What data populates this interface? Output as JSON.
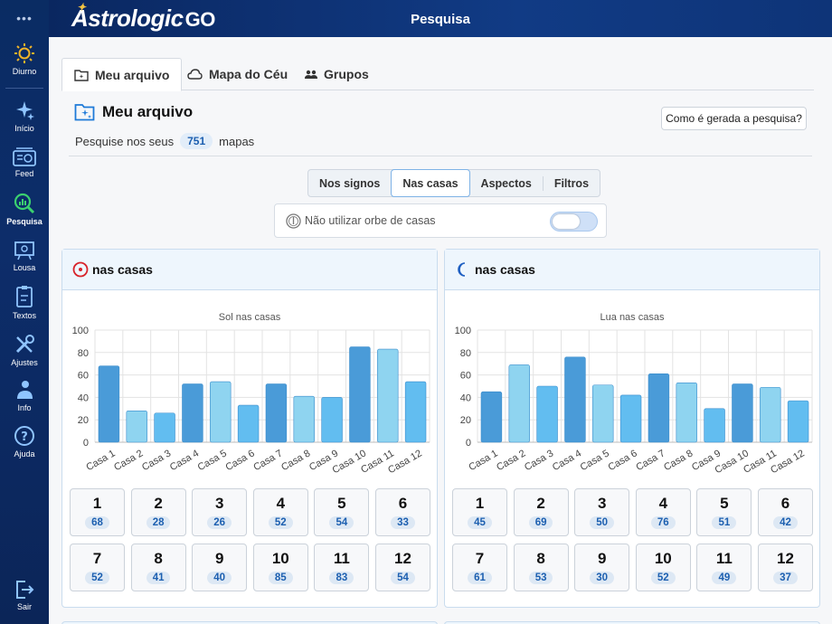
{
  "app": {
    "logo_text": "Astrologic",
    "logo_suffix": "GO",
    "page_title": "Pesquisa"
  },
  "sidebar": {
    "menu_glyph": "•••",
    "items": [
      {
        "label": "Diurno",
        "icon": "sun-icon"
      },
      {
        "label": "Início",
        "icon": "sparkles-icon"
      },
      {
        "label": "Feed",
        "icon": "feed-icon"
      },
      {
        "label": "Pesquisa",
        "icon": "search-chart-icon",
        "active": true
      },
      {
        "label": "Lousa",
        "icon": "board-icon"
      },
      {
        "label": "Textos",
        "icon": "texts-icon"
      },
      {
        "label": "Ajustes",
        "icon": "tools-icon"
      },
      {
        "label": "Info",
        "icon": "info-user-icon"
      },
      {
        "label": "Ajuda",
        "icon": "help-icon"
      },
      {
        "label": "Sair",
        "icon": "logout-icon"
      }
    ]
  },
  "tabs": [
    {
      "label": "Meu arquivo",
      "icon": "folder-star-icon",
      "active": true
    },
    {
      "label": "Mapa do Céu",
      "icon": "cloud-icon"
    },
    {
      "label": "Grupos",
      "icon": "group-icon"
    }
  ],
  "section": {
    "title": "Meu arquivo",
    "how_button": "Como é gerada a pesquisa?",
    "count_prefix": "Pesquise nos seus",
    "count": "751",
    "count_suffix": "mapas"
  },
  "filters": {
    "segments": [
      "Nos signos",
      "Nas casas",
      "Aspectos",
      "Filtros"
    ],
    "active": "Nas casas",
    "orb_label": "Não utilizar orbe de casas",
    "orb_enabled": false
  },
  "colors": {
    "accent": "#1c5fb0",
    "sun": "#d8232a",
    "moon": "#1e5fc2",
    "bar_dark": "#4a9bd8",
    "bar_mid": "#62bdf0",
    "bar_light": "#8fd4f0"
  },
  "panels": [
    {
      "planet_icon": "sun-icon",
      "header": "nas casas",
      "chart_data": {
        "type": "bar",
        "title": "Sol nas casas",
        "categories": [
          "Casa 1",
          "Casa 2",
          "Casa 3",
          "Casa 4",
          "Casa 5",
          "Casa 6",
          "Casa 7",
          "Casa 8",
          "Casa 9",
          "Casa 10",
          "Casa 11",
          "Casa 12"
        ],
        "values": [
          68,
          28,
          26,
          52,
          54,
          33,
          52,
          41,
          40,
          85,
          83,
          54
        ],
        "ylim": [
          0,
          100
        ],
        "yticks": [
          "0",
          "20",
          "40",
          "60",
          "80",
          "100"
        ],
        "grid": true
      },
      "cells": [
        {
          "n": "1",
          "v": "68"
        },
        {
          "n": "2",
          "v": "28"
        },
        {
          "n": "3",
          "v": "26"
        },
        {
          "n": "4",
          "v": "52"
        },
        {
          "n": "5",
          "v": "54"
        },
        {
          "n": "6",
          "v": "33"
        },
        {
          "n": "7",
          "v": "52"
        },
        {
          "n": "8",
          "v": "41"
        },
        {
          "n": "9",
          "v": "40"
        },
        {
          "n": "10",
          "v": "85"
        },
        {
          "n": "11",
          "v": "83"
        },
        {
          "n": "12",
          "v": "54"
        }
      ]
    },
    {
      "planet_icon": "moon-icon",
      "header": "nas casas",
      "chart_data": {
        "type": "bar",
        "title": "Lua nas casas",
        "categories": [
          "Casa 1",
          "Casa 2",
          "Casa 3",
          "Casa 4",
          "Casa 5",
          "Casa 6",
          "Casa 7",
          "Casa 8",
          "Casa 9",
          "Casa 10",
          "Casa 11",
          "Casa 12"
        ],
        "values": [
          45,
          69,
          50,
          76,
          51,
          42,
          61,
          53,
          30,
          52,
          49,
          37
        ],
        "ylim": [
          0,
          100
        ],
        "yticks": [
          "0",
          "20",
          "40",
          "60",
          "80",
          "100"
        ],
        "grid": true
      },
      "cells": [
        {
          "n": "1",
          "v": "45"
        },
        {
          "n": "2",
          "v": "69"
        },
        {
          "n": "3",
          "v": "50"
        },
        {
          "n": "4",
          "v": "76"
        },
        {
          "n": "5",
          "v": "51"
        },
        {
          "n": "6",
          "v": "42"
        },
        {
          "n": "7",
          "v": "61"
        },
        {
          "n": "8",
          "v": "53"
        },
        {
          "n": "9",
          "v": "30"
        },
        {
          "n": "10",
          "v": "52"
        },
        {
          "n": "11",
          "v": "49"
        },
        {
          "n": "12",
          "v": "37"
        }
      ]
    }
  ]
}
